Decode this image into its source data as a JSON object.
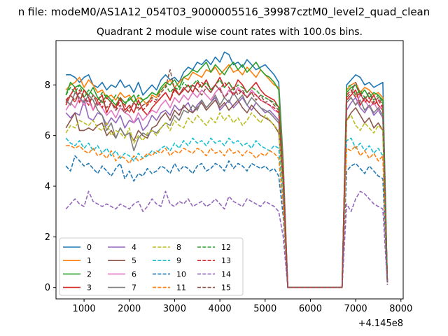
{
  "figure": {
    "suptitle": "n file: modeM0/AS1A12_054T03_9000005516_39987cztM0_level2_quad_clean"
  },
  "chart_data": {
    "type": "line",
    "title": "Quadrant 2 module wise count rates with 100.0s bins.",
    "xlabel": "",
    "ylabel": "",
    "x_offset_label": "+4.145e8",
    "xlim": [
      380,
      8050
    ],
    "ylim": [
      -0.45,
      9.75
    ],
    "xticks": [
      1000,
      2000,
      3000,
      4000,
      5000,
      6000,
      7000,
      8000
    ],
    "xtick_labels": [
      "1000",
      "2000",
      "3000",
      "4000",
      "5000",
      "6000",
      "7000",
      "8000"
    ],
    "yticks": [
      0,
      2,
      4,
      6,
      8
    ],
    "ytick_labels": [
      "0",
      "2",
      "4",
      "6",
      "8"
    ],
    "grid": false,
    "legend_position": "lower-left",
    "legend_columns": 4,
    "x_segments": [
      {
        "start": 600,
        "end": 5300,
        "step": 100
      },
      {
        "drop": [
          5400,
          5500
        ]
      },
      {
        "flat_zero": [
          5500,
          6700
        ]
      },
      {
        "rise": [
          6800
        ]
      },
      {
        "start": 6800,
        "end": 7600,
        "step": 100
      },
      {
        "drop": [
          7700
        ]
      }
    ],
    "series": [
      {
        "name": "0",
        "color": "#1f77b4",
        "dash": "solid",
        "seg1": [
          8.4,
          8.4,
          8.3,
          8.1,
          8.3,
          8.4,
          8.0,
          7.9,
          8.1,
          7.8,
          8.0,
          7.9,
          8.2,
          7.9,
          8.0,
          7.7,
          8.1,
          7.6,
          7.8,
          8.0,
          7.8,
          8.2,
          8.4,
          8.2,
          8.3,
          8.1,
          8.5,
          8.7,
          8.6,
          8.9,
          8.8,
          9.0,
          8.8,
          9.1,
          8.9,
          9.3,
          9.2,
          8.8,
          8.9,
          8.7,
          9.0,
          8.8,
          8.6,
          8.7,
          8.8,
          8.6,
          8.4,
          8.1
        ],
        "drop1": [
          5.0,
          0.0
        ],
        "seg2": [
          8.0,
          8.2,
          8.4,
          8.3,
          8.0,
          8.1,
          7.9,
          8.0,
          8.1
        ],
        "drop2": [
          0.2
        ]
      },
      {
        "name": "1",
        "color": "#ff7f0e",
        "dash": "solid",
        "seg1": [
          7.8,
          8.0,
          8.1,
          8.3,
          7.9,
          8.2,
          8.0,
          7.7,
          7.8,
          7.5,
          7.6,
          7.4,
          7.7,
          7.5,
          7.6,
          7.3,
          7.5,
          7.4,
          7.2,
          7.6,
          7.5,
          7.8,
          8.0,
          8.2,
          7.9,
          8.1,
          8.3,
          8.2,
          8.5,
          8.4,
          8.3,
          8.6,
          8.5,
          8.7,
          8.4,
          8.6,
          8.8,
          8.5,
          8.6,
          8.4,
          8.7,
          8.5,
          8.3,
          8.6,
          8.4,
          8.2,
          8.0,
          7.9
        ],
        "drop1": [
          4.8,
          0.0
        ],
        "seg2": [
          7.8,
          8.0,
          8.1,
          7.7,
          7.9,
          7.8,
          7.6,
          7.7,
          7.5
        ],
        "drop2": [
          0.2
        ]
      },
      {
        "name": "2",
        "color": "#2ca02c",
        "dash": "solid",
        "seg1": [
          7.6,
          8.1,
          7.9,
          8.0,
          7.8,
          7.6,
          7.9,
          7.5,
          7.3,
          7.6,
          7.4,
          7.2,
          7.5,
          7.3,
          7.4,
          7.6,
          7.2,
          7.4,
          7.5,
          7.7,
          7.6,
          7.9,
          8.1,
          8.0,
          8.2,
          7.9,
          8.3,
          8.4,
          8.6,
          8.5,
          8.7,
          8.9,
          8.5,
          8.8,
          8.6,
          8.4,
          8.7,
          8.9,
          8.6,
          8.8,
          8.5,
          8.7,
          8.9,
          8.6,
          8.4,
          8.3,
          8.1,
          7.8
        ],
        "drop1": [
          4.6,
          0.0
        ],
        "seg2": [
          7.7,
          7.9,
          8.0,
          7.6,
          7.8,
          7.5,
          7.7,
          7.6,
          7.4
        ],
        "drop2": [
          0.2
        ]
      },
      {
        "name": "3",
        "color": "#d62728",
        "dash": "solid",
        "seg1": [
          7.2,
          7.6,
          7.9,
          7.3,
          7.8,
          7.5,
          7.0,
          7.4,
          7.6,
          6.9,
          7.3,
          7.1,
          7.5,
          7.0,
          7.2,
          6.9,
          7.4,
          7.0,
          6.8,
          7.1,
          7.3,
          7.5,
          7.7,
          7.4,
          7.9,
          7.6,
          7.8,
          8.0,
          7.7,
          8.1,
          7.9,
          8.2,
          7.8,
          8.0,
          8.3,
          7.9,
          8.1,
          7.8,
          8.2,
          8.0,
          7.7,
          7.9,
          8.1,
          7.8,
          7.6,
          7.5,
          7.4,
          7.1
        ],
        "drop1": [
          4.5,
          0.0
        ],
        "seg2": [
          7.4,
          7.6,
          7.8,
          7.2,
          7.5,
          7.3,
          7.6,
          7.2,
          7.0
        ],
        "drop2": [
          0.2
        ]
      },
      {
        "name": "4",
        "color": "#9467bd",
        "dash": "solid",
        "seg1": [
          6.9,
          6.7,
          6.9,
          6.8,
          7.4,
          6.7,
          6.6,
          6.9,
          6.8,
          6.4,
          6.7,
          6.5,
          6.8,
          6.3,
          6.6,
          6.5,
          6.7,
          6.2,
          6.4,
          6.8,
          6.6,
          6.9,
          7.0,
          6.8,
          7.2,
          7.0,
          7.1,
          7.3,
          6.9,
          7.2,
          7.4,
          7.1,
          7.3,
          7.5,
          7.0,
          7.2,
          7.4,
          7.1,
          7.3,
          7.5,
          7.2,
          7.0,
          7.3,
          7.1,
          6.9,
          7.0,
          6.8,
          6.6
        ],
        "drop1": [
          4.2,
          0.0
        ],
        "seg2": [
          7.0,
          7.3,
          7.5,
          7.1,
          6.9,
          7.2,
          6.8,
          7.0,
          6.7
        ],
        "drop2": [
          0.2
        ]
      },
      {
        "name": "5",
        "color": "#8c564b",
        "dash": "solid",
        "seg1": [
          6.3,
          6.6,
          6.9,
          6.2,
          6.2,
          6.3,
          6.2,
          6.4,
          6.5,
          6.0,
          6.2,
          5.9,
          6.3,
          6.0,
          6.1,
          5.8,
          6.2,
          6.0,
          5.9,
          6.3,
          6.4,
          6.7,
          6.9,
          6.6,
          7.0,
          6.8,
          7.2,
          7.0,
          6.9,
          7.1,
          7.3,
          7.0,
          7.2,
          7.4,
          7.1,
          7.3,
          7.0,
          7.2,
          7.4,
          7.1,
          6.9,
          7.2,
          7.0,
          6.8,
          6.7,
          6.6,
          6.4,
          6.1
        ],
        "drop1": [
          3.9,
          0.0
        ],
        "seg2": [
          6.6,
          6.9,
          7.1,
          6.8,
          6.5,
          6.7,
          6.3,
          6.5,
          6.2
        ],
        "drop2": [
          0.2
        ]
      },
      {
        "name": "6",
        "color": "#e377c2",
        "dash": "solid",
        "seg1": [
          7.0,
          7.3,
          7.1,
          7.5,
          7.2,
          7.4,
          7.0,
          7.3,
          7.1,
          6.8,
          7.0,
          6.7,
          7.1,
          6.9,
          6.8,
          6.5,
          6.9,
          6.6,
          6.8,
          7.0,
          6.9,
          7.2,
          7.4,
          7.1,
          7.5,
          7.3,
          7.6,
          7.4,
          7.7,
          7.5,
          7.8,
          7.6,
          7.4,
          7.7,
          7.9,
          7.5,
          7.8,
          7.6,
          7.9,
          7.7,
          7.5,
          7.8,
          7.6,
          7.4,
          7.3,
          7.2,
          7.0,
          6.9
        ],
        "drop1": [
          4.4,
          0.0
        ],
        "seg2": [
          7.3,
          7.5,
          7.2,
          7.6,
          7.4,
          7.1,
          7.3,
          7.0,
          7.2
        ],
        "drop2": [
          0.2
        ]
      },
      {
        "name": "7",
        "color": "#7f7f7f",
        "dash": "solid",
        "seg1": [
          7.4,
          7.2,
          7.7,
          7.5,
          7.3,
          7.6,
          7.4,
          7.0,
          6.8,
          6.2,
          6.5,
          5.9,
          6.3,
          6.0,
          6.1,
          5.4,
          5.9,
          6.1,
          6.0,
          6.2,
          6.1,
          6.3,
          6.5,
          6.4,
          6.8,
          6.6,
          7.0,
          6.9,
          7.2,
          7.0,
          7.4,
          7.1,
          7.3,
          7.6,
          7.2,
          7.5,
          7.3,
          7.7,
          7.4,
          7.6,
          7.2,
          7.5,
          7.3,
          7.1,
          7.0,
          6.9,
          6.7,
          6.5
        ],
        "drop1": [
          4.3,
          0.0
        ],
        "seg2": [
          7.3,
          7.5,
          7.2,
          7.4,
          7.0,
          7.2,
          6.9,
          7.1,
          6.8
        ],
        "drop2": [
          0.2
        ]
      },
      {
        "name": "8",
        "color": "#bcbd22",
        "dash": "dashed",
        "seg1": [
          6.1,
          6.4,
          6.3,
          6.6,
          6.5,
          6.4,
          6.6,
          6.3,
          6.2,
          6.5,
          6.0,
          6.2,
          6.1,
          5.9,
          6.3,
          5.7,
          6.0,
          5.8,
          6.1,
          6.2,
          6.0,
          6.3,
          6.5,
          6.2,
          6.6,
          6.4,
          6.3,
          6.7,
          6.5,
          6.8,
          6.6,
          6.4,
          6.7,
          6.5,
          6.9,
          6.6,
          6.8,
          6.5,
          6.7,
          6.4,
          6.6,
          6.9,
          6.7,
          6.5,
          6.8,
          6.6,
          6.4,
          6.2
        ],
        "drop1": [
          3.8,
          0.0
        ],
        "seg2": [
          6.6,
          6.8,
          6.4,
          6.2,
          6.5,
          6.3,
          6.1,
          6.4,
          6.2
        ],
        "drop2": [
          0.2
        ]
      },
      {
        "name": "9",
        "color": "#17becf",
        "dash": "dashed",
        "seg1": [
          5.9,
          5.7,
          5.6,
          5.8,
          5.5,
          5.7,
          5.4,
          5.6,
          5.3,
          5.5,
          5.2,
          5.4,
          5.1,
          5.3,
          5.2,
          5.0,
          5.3,
          5.1,
          5.2,
          5.4,
          5.3,
          5.5,
          5.6,
          5.4,
          5.7,
          5.5,
          5.8,
          5.6,
          5.9,
          5.7,
          5.8,
          5.6,
          5.9,
          5.7,
          5.8,
          5.6,
          5.9,
          5.7,
          5.8,
          5.6,
          5.7,
          5.5,
          5.8,
          5.6,
          5.5,
          5.4,
          5.6,
          5.5
        ],
        "drop1": [
          3.4,
          0.0
        ],
        "seg2": [
          5.8,
          5.9,
          5.5,
          5.7,
          5.4,
          5.6,
          5.3,
          5.5,
          5.2
        ],
        "drop2": [
          0.2
        ]
      },
      {
        "name": "10",
        "color": "#1f77b4",
        "dash": "dashed",
        "seg1": [
          4.8,
          4.6,
          5.2,
          5.0,
          4.8,
          4.9,
          4.7,
          4.5,
          4.8,
          4.6,
          4.4,
          4.7,
          4.9,
          4.3,
          4.6,
          4.2,
          4.5,
          4.4,
          4.7,
          4.5,
          4.6,
          4.8,
          4.7,
          4.5,
          4.9,
          4.6,
          4.8,
          4.7,
          4.5,
          4.8,
          4.9,
          4.6,
          4.7,
          4.9,
          4.8,
          4.6,
          5.0,
          4.7,
          4.9,
          4.8,
          4.6,
          4.9,
          4.8,
          4.7,
          4.8,
          4.6,
          4.7,
          4.4
        ],
        "drop1": [
          2.8,
          0.0
        ],
        "seg2": [
          4.6,
          4.8,
          4.9,
          4.7,
          4.5,
          4.8,
          4.6,
          4.4,
          4.3
        ],
        "drop2": [
          0.2
        ]
      },
      {
        "name": "11",
        "color": "#ff7f0e",
        "dash": "dashed",
        "seg1": [
          5.6,
          5.6,
          5.5,
          5.6,
          5.4,
          5.3,
          5.5,
          5.2,
          5.3,
          5.1,
          5.4,
          5.0,
          5.2,
          5.1,
          4.9,
          5.2,
          5.0,
          5.1,
          5.3,
          5.2,
          5.4,
          5.3,
          5.5,
          5.2,
          5.4,
          5.3,
          5.5,
          5.4,
          5.3,
          5.5,
          5.4,
          5.2,
          5.5,
          5.3,
          5.4,
          5.2,
          5.5,
          5.3,
          5.4,
          5.2,
          5.4,
          5.3,
          5.1,
          5.3,
          5.2,
          5.4,
          5.3,
          5.1
        ],
        "drop1": [
          3.2,
          0.0
        ],
        "seg2": [
          5.5,
          5.4,
          5.6,
          5.2,
          5.4,
          5.1,
          5.3,
          5.0,
          5.2
        ],
        "drop2": [
          0.2
        ]
      },
      {
        "name": "12",
        "color": "#2ca02c",
        "dash": "dashed",
        "seg1": [
          7.6,
          7.9,
          7.7,
          8.0,
          7.5,
          7.8,
          7.6,
          7.4,
          7.7,
          7.5,
          7.3,
          7.6,
          7.4,
          7.2,
          7.5,
          7.3,
          7.6,
          7.4,
          7.5,
          7.7,
          7.6,
          7.8,
          8.0,
          7.7,
          7.9,
          7.8,
          8.1,
          7.9,
          8.0,
          8.2,
          7.9,
          8.1,
          7.8,
          8.0,
          8.2,
          7.9,
          8.1,
          7.8,
          8.0,
          7.9,
          7.7,
          7.9,
          7.8,
          7.6,
          7.5,
          7.4,
          7.3,
          7.1
        ],
        "drop1": [
          4.4,
          0.0
        ],
        "seg2": [
          7.9,
          8.0,
          7.6,
          7.8,
          7.5,
          7.7,
          7.4,
          7.6,
          7.3
        ],
        "drop2": [
          0.2
        ]
      },
      {
        "name": "13",
        "color": "#d62728",
        "dash": "dashed",
        "seg1": [
          7.4,
          7.6,
          7.3,
          7.8,
          7.5,
          7.2,
          7.6,
          7.4,
          7.1,
          7.5,
          7.3,
          7.0,
          7.4,
          7.2,
          6.9,
          7.3,
          7.1,
          7.0,
          7.2,
          7.4,
          7.3,
          7.5,
          7.7,
          7.4,
          7.8,
          7.6,
          7.9,
          7.7,
          8.0,
          7.8,
          8.1,
          7.9,
          7.7,
          8.0,
          7.8,
          8.1,
          7.9,
          7.6,
          7.8,
          7.7,
          7.5,
          7.7,
          7.6,
          7.4,
          7.3,
          7.2,
          7.1,
          6.9
        ],
        "drop1": [
          4.3,
          0.0
        ],
        "seg2": [
          7.6,
          7.8,
          7.5,
          7.7,
          7.3,
          7.5,
          7.2,
          7.4,
          7.1
        ],
        "drop2": [
          0.2
        ]
      },
      {
        "name": "14",
        "color": "#9467bd",
        "dash": "dashed",
        "seg1": [
          3.1,
          3.3,
          3.5,
          3.3,
          3.2,
          3.8,
          3.4,
          3.3,
          3.2,
          3.3,
          3.2,
          3.1,
          3.3,
          3.2,
          3.1,
          3.3,
          3.4,
          3.0,
          3.2,
          3.5,
          3.3,
          3.2,
          3.8,
          3.3,
          3.2,
          3.4,
          3.3,
          3.5,
          3.2,
          3.3,
          3.4,
          3.2,
          3.3,
          3.5,
          3.3,
          3.1,
          3.6,
          3.4,
          3.3,
          3.2,
          3.5,
          3.4,
          3.3,
          3.2,
          3.4,
          3.3,
          3.2,
          3.0
        ],
        "drop1": [
          2.0,
          0.0
        ],
        "seg2": [
          3.3,
          3.0,
          3.5,
          3.8,
          3.7,
          3.5,
          3.3,
          3.2,
          3.1
        ],
        "drop2": [
          0.1
        ]
      },
      {
        "name": "15",
        "color": "#8c564b",
        "dash": "dashed",
        "seg1": [
          7.3,
          7.6,
          7.4,
          7.7,
          7.5,
          7.3,
          7.6,
          7.2,
          7.4,
          7.1,
          7.3,
          7.0,
          7.2,
          6.9,
          7.1,
          7.3,
          7.0,
          7.2,
          7.3,
          7.5,
          7.4,
          7.7,
          7.9,
          8.6,
          7.8,
          7.6,
          7.9,
          7.7,
          8.0,
          7.8,
          7.6,
          7.9,
          7.7,
          8.0,
          7.8,
          7.5,
          7.7,
          7.9,
          7.6,
          7.8,
          7.5,
          7.7,
          7.4,
          7.6,
          7.3,
          7.4,
          7.2,
          7.0
        ],
        "drop1": [
          4.2,
          0.0
        ],
        "seg2": [
          7.5,
          7.7,
          8.1,
          7.6,
          7.4,
          7.7,
          7.3,
          7.5,
          7.2
        ],
        "drop2": [
          0.2
        ]
      }
    ]
  }
}
